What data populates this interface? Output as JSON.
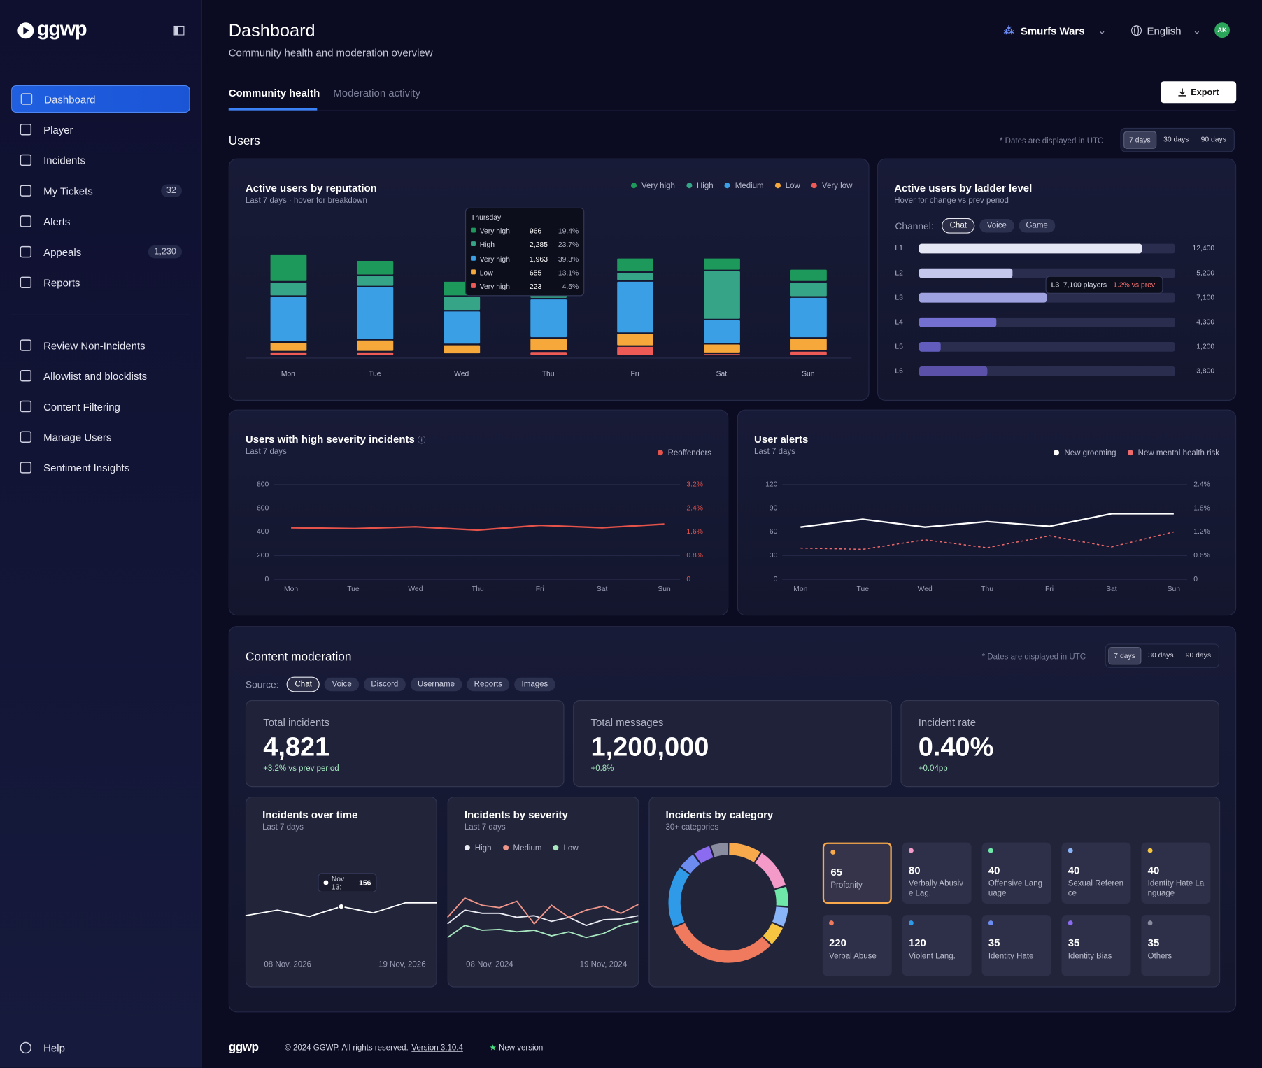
{
  "sidebar": {
    "logo": "ggwp",
    "nav": [
      {
        "label": "Dashboard"
      },
      {
        "label": "Player"
      },
      {
        "label": "Incidents"
      },
      {
        "label": "My Tickets",
        "badge": "32"
      },
      {
        "label": "Alerts"
      },
      {
        "label": "Appeals",
        "badge": "1,230"
      },
      {
        "label": "Reports"
      }
    ],
    "nav2": [
      {
        "label": "Review Non-Incidents"
      },
      {
        "label": "Allowlist and blocklists"
      },
      {
        "label": "Content Filtering"
      },
      {
        "label": "Manage Users"
      },
      {
        "label": "Sentiment Insights"
      }
    ],
    "help": "Help"
  },
  "header": {
    "title": "Dashboard",
    "subtitle": "Community health and moderation overview",
    "workspace": "Smurfs Wars",
    "language": "English",
    "avatar": "AK",
    "tabs": [
      "Community health",
      "Moderation activity"
    ],
    "export": "Export"
  },
  "users": {
    "title": "Users",
    "utc_note": "* Dates are displayed in UTC",
    "ranges": [
      "7 days",
      "30 days",
      "90 days"
    ],
    "reputation": {
      "type": "bar",
      "stacked": true,
      "title": "Active users by reputation",
      "subtitle": "Last 7 days · hover for breakdown",
      "categories": [
        "Mon",
        "Tue",
        "Wed",
        "Thu",
        "Fri",
        "Sat",
        "Sun"
      ],
      "series": [
        {
          "name": "Very high",
          "color": "#1d9a5b",
          "values": [
            1400,
            760,
            760,
            966,
            720,
            640,
            640
          ]
        },
        {
          "name": "High",
          "color": "#35a487",
          "values": [
            720,
            560,
            720,
            2285,
            440,
            2440,
            760
          ]
        },
        {
          "name": "Medium",
          "color": "#3b9fe6",
          "values": [
            2280,
            2640,
            1680,
            1963,
            2600,
            1200,
            2040
          ]
        },
        {
          "name": "Low",
          "color": "#f6a83a",
          "values": [
            480,
            600,
            480,
            655,
            640,
            480,
            640
          ]
        },
        {
          "name": "Very low",
          "color": "#ee5b57",
          "values": [
            200,
            200,
            80,
            223,
            480,
            120,
            240
          ]
        }
      ],
      "tooltip": {
        "title": "Thursday",
        "rows": [
          {
            "label": "Very high",
            "value": "966",
            "share": "19.4%"
          },
          {
            "label": "High",
            "value": "2,285",
            "share": "23.7%"
          },
          {
            "label": "Very high",
            "value": "1,963",
            "share": "39.3%"
          },
          {
            "label": "Low",
            "value": "655",
            "share": "13.1%"
          },
          {
            "label": "Very high",
            "value": "223",
            "share": "4.5%"
          }
        ]
      }
    },
    "ladder": {
      "type": "bar",
      "orientation": "horizontal",
      "title": "Active users by ladder level",
      "subtitle": "Hover for change vs prev period",
      "channel_label": "Channel:",
      "channels": [
        "Chat",
        "Voice",
        "Game"
      ],
      "categories": [
        "L1",
        "L2",
        "L3",
        "L4",
        "L5",
        "L6"
      ],
      "values": [
        12400,
        5200,
        7100,
        4300,
        1200,
        3800
      ],
      "value_labels": [
        "12,400",
        "5,200",
        "7,100",
        "4,300",
        "1,200",
        "3,800"
      ],
      "colors": [
        "#e6e7f5",
        "#c5c8ec",
        "#9ea2e0",
        "#7370d2",
        "#625dbd",
        "#5b51a8"
      ],
      "tooltip": {
        "level": "L3",
        "players": "7,100 players",
        "change": "-1.2% vs prev"
      }
    },
    "severity": {
      "type": "line",
      "title": "Users with high severity incidents",
      "subtitle": "Last 7 days",
      "categories": [
        "Mon",
        "Tue",
        "Wed",
        "Thu",
        "Fri",
        "Sat",
        "Sun"
      ],
      "series": [
        {
          "name": "Reoffenders",
          "color": "#e5534b",
          "axis": "y2",
          "values": [
            1.74,
            1.71,
            1.77,
            1.66,
            1.82,
            1.74,
            1.86
          ]
        }
      ],
      "ylim": [
        0,
        800
      ],
      "yticks": [
        0,
        200,
        400,
        600,
        800
      ],
      "y2lim": [
        0,
        3.2
      ],
      "y2ticks": [
        0,
        {
          "value": 0.8,
          "label": "0.8%"
        },
        {
          "value": 1.6,
          "label": "1.6%"
        },
        {
          "value": 2.4,
          "label": "2.4%"
        },
        {
          "value": 3.2,
          "label": "3.2%"
        }
      ],
      "y2tick_color": "#e5534b",
      "grid": true
    },
    "alerts": {
      "type": "line",
      "title": "User alerts",
      "subtitle": "Last 7 days",
      "categories": [
        "Mon",
        "Tue",
        "Wed",
        "Thu",
        "Fri",
        "Sat",
        "Sun"
      ],
      "series": [
        {
          "name": "New grooming",
          "color": "#ffffff",
          "values": [
            66,
            76,
            66,
            73,
            67,
            83,
            83
          ]
        },
        {
          "name": "New mental health risk",
          "color": "#ef6b6b",
          "axis": "y2",
          "dashed": true,
          "values": [
            0.79,
            0.76,
            1.0,
            0.8,
            1.1,
            0.82,
            1.2
          ]
        }
      ],
      "ylim": [
        0,
        120
      ],
      "yticks": [
        0,
        30,
        60,
        90,
        120
      ],
      "y2lim": [
        0,
        2.4
      ],
      "y2ticks": [
        0,
        {
          "value": 0.6,
          "label": "0.6%"
        },
        {
          "value": 1.2,
          "label": "1.2%"
        },
        {
          "value": 1.8,
          "label": "1.8%"
        },
        {
          "value": 2.4,
          "label": "2.4%"
        }
      ],
      "grid": true
    }
  },
  "moderation": {
    "title": "Content moderation",
    "utc_note": "* Dates are displayed in UTC",
    "ranges": [
      "7 days",
      "30 days",
      "90 days"
    ],
    "source_label": "Source:",
    "sources": [
      "Chat",
      "Voice",
      "Discord",
      "Username",
      "Reports",
      "Images"
    ],
    "kpis": [
      {
        "label": "Total incidents",
        "value": "4,821",
        "change": "+3.2% vs prev period"
      },
      {
        "label": "Total messages",
        "value": "1,200,000",
        "change": "+0.8%"
      },
      {
        "label": "Incident rate",
        "value": "0.40%",
        "change": "+0.04pp"
      }
    ],
    "over_time": {
      "type": "line",
      "title": "Incidents over time",
      "subtitle": "Last 7 days",
      "series": [
        {
          "color": "#ffffff",
          "values": [
            136,
            148,
            134,
            156,
            142,
            164,
            164
          ]
        }
      ],
      "x_labels": [
        "08 Nov, 2026",
        "19 Nov, 2026"
      ],
      "tooltip": {
        "label": "Nov 13:",
        "value": 156
      }
    },
    "by_severity": {
      "type": "line",
      "title": "Incidents by severity",
      "subtitle": "Last 7 days",
      "series": [
        {
          "name": "High",
          "color": "#ececf4",
          "values": [
            52,
            69,
            65,
            65,
            60,
            62,
            55,
            60,
            50,
            57,
            58,
            62
          ]
        },
        {
          "name": "Medium",
          "color": "#f0958a",
          "values": [
            60,
            84,
            75,
            72,
            80,
            52,
            75,
            60,
            69,
            74,
            65,
            76
          ]
        },
        {
          "name": "Low",
          "color": "#a8e6c0",
          "values": [
            35,
            50,
            44,
            45,
            42,
            44,
            37,
            42,
            35,
            40,
            50,
            55
          ]
        }
      ],
      "x_labels": [
        "08 Nov, 2024",
        "19 Nov, 2024"
      ]
    },
    "category": {
      "type": "pie",
      "donut": true,
      "title": "Incidents by category",
      "subtitle": "30+ categories",
      "categories": [
        "Profanity",
        "Verbally Abusive Lag.",
        "Offensive Language",
        "Sexual Reference",
        "Identity Hate Language",
        "Verbal Abuse",
        "Violent Lang.",
        "Identity Hate",
        "Identity Bias",
        "Others"
      ],
      "values": [
        65,
        80,
        40,
        40,
        40,
        220,
        120,
        35,
        35,
        35
      ],
      "colors": [
        "#f7a94b",
        "#f49ac8",
        "#6ee7a8",
        "#8ab4f8",
        "#f5c542",
        "#ef7a5d",
        "#2f9be8",
        "#6c8cf0",
        "#8b6cf0",
        "#8a8ca0"
      ]
    }
  },
  "footer": {
    "logo": "ggwp",
    "copyright": "© 2024 GGWP. All rights reserved.",
    "version": "Version 3.10.4",
    "new_version": "New version"
  }
}
